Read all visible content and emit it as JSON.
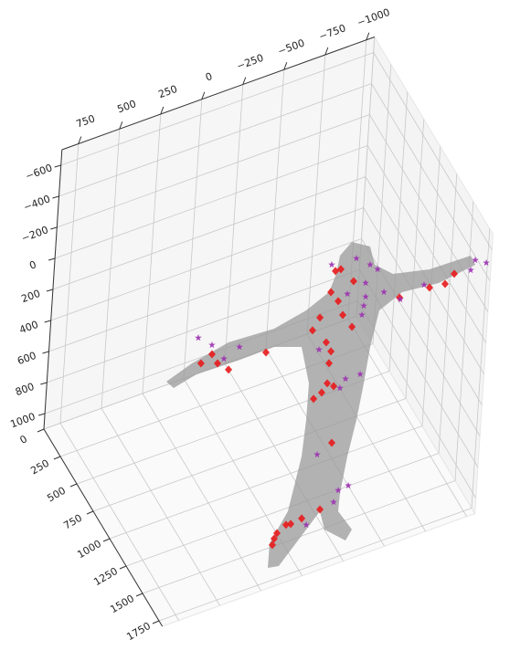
{
  "chart_data": {
    "type": "scatter3d",
    "xlim": [
      -1050,
      850
    ],
    "ylim": [
      -700,
      1100
    ],
    "zlim": [
      0,
      1800
    ],
    "xticks": [
      {
        "value": -1000,
        "label": "−1000"
      },
      {
        "value": -750,
        "label": "−750"
      },
      {
        "value": -500,
        "label": "−500"
      },
      {
        "value": -250,
        "label": "−250"
      },
      0,
      250,
      500,
      750
    ],
    "yticks": [
      {
        "value": -600,
        "label": "−600"
      },
      {
        "value": -400,
        "label": "−400"
      },
      {
        "value": -200,
        "label": "−200"
      },
      0,
      200,
      400,
      600,
      800,
      1000
    ],
    "zticks": [
      0,
      250,
      500,
      750,
      1000,
      1250,
      1500,
      1750
    ],
    "grid": true,
    "series": [
      {
        "color": "#e8191c",
        "marker": "diamond",
        "x": [
          -493,
          -526,
          -473,
          -610,
          -522,
          -556,
          -415,
          -374,
          -618,
          -464,
          -497,
          -490,
          -487,
          -456,
          -408,
          -528,
          -93,
          133,
          204,
          242,
          307,
          -675,
          -858,
          -772,
          -825,
          -539,
          -220,
          -110,
          -15,
          53,
          -44,
          38,
          62
        ],
        "y": [
          -40,
          -39,
          88,
          70,
          165,
          267,
          230,
          297,
          367,
          408,
          479,
          553,
          681,
          729,
          751,
          715,
          331,
          356,
          288,
          215,
          249,
          -153,
          -147,
          -486,
          -531,
          1084,
          968,
          984,
          989,
          1052,
          994,
          1022,
          1089
        ],
        "z": [
          900,
          900,
          900,
          900,
          900,
          900,
          900,
          900,
          900,
          900,
          900,
          900,
          900,
          900,
          900,
          900,
          900,
          900,
          900,
          900,
          900,
          1400,
          1400,
          1800,
          1800,
          900,
          1500,
          1500,
          1500,
          1500,
          1500,
          1500,
          1500
        ]
      },
      {
        "color": "#9b30b0",
        "marker": "star",
        "x": [
          -618,
          -706,
          -754,
          -685,
          -691,
          -576,
          -683,
          -467,
          -675,
          -688,
          -599,
          -568,
          -422,
          -362,
          -326,
          -387,
          -302,
          -141,
          334,
          246,
          166,
          74,
          -576,
          -681,
          -823,
          -926,
          -1020,
          -950
        ],
        "y": [
          -74,
          0,
          48,
          110,
          201,
          139,
          256,
          -91,
          312,
          699,
          695,
          742,
          439,
          951,
          885,
          878,
          952,
          1037,
          74,
          154,
          273,
          232,
          -226,
          -139,
          -178,
          -516,
          -527,
          -571
        ],
        "z": [
          900,
          900,
          900,
          900,
          900,
          900,
          900,
          900,
          900,
          900,
          900,
          900,
          900,
          1100,
          1500,
          1500,
          1500,
          1500,
          900,
          900,
          900,
          900,
          1400,
          1400,
          1400,
          1800,
          1800,
          1800
        ]
      }
    ]
  }
}
